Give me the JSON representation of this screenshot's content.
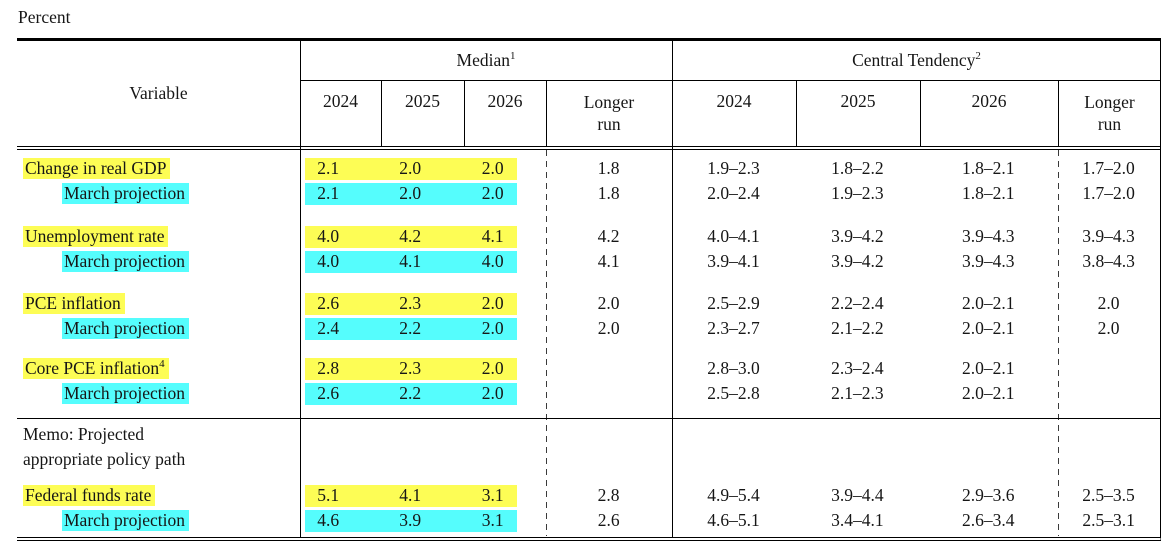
{
  "page": {
    "unit_label": "Percent"
  },
  "colors": {
    "highlight_yellow": "#fdfd55",
    "highlight_cyan": "#55fdfd",
    "rule": "#000000"
  },
  "table": {
    "header": {
      "variable": "Variable",
      "median_label": "Median",
      "median_sup": "1",
      "ct_label": "Central Tendency",
      "ct_sup": "2",
      "median_cols": [
        "2024",
        "2025",
        "2026",
        "Longer\nrun"
      ],
      "ct_cols": [
        "2024",
        "2025",
        "2026",
        "Longer\nrun"
      ]
    },
    "rows": [
      {
        "label": "Change in real GDP",
        "median": [
          "2.1",
          "2.0",
          "2.0"
        ],
        "longer": "1.8",
        "ct": [
          "1.9–2.3",
          "1.8–2.2",
          "1.8–2.1"
        ],
        "ct_longer": "1.7–2.0"
      },
      {
        "label": "March projection",
        "median": [
          "2.1",
          "2.0",
          "2.0"
        ],
        "longer": "1.8",
        "ct": [
          "2.0–2.4",
          "1.9–2.3",
          "1.8–2.1"
        ],
        "ct_longer": "1.7–2.0"
      },
      {
        "label": "Unemployment rate",
        "median": [
          "4.0",
          "4.2",
          "4.1"
        ],
        "longer": "4.2",
        "ct": [
          "4.0–4.1",
          "3.9–4.2",
          "3.9–4.3"
        ],
        "ct_longer": "3.9–4.3"
      },
      {
        "label": "March projection",
        "median": [
          "4.0",
          "4.1",
          "4.0"
        ],
        "longer": "4.1",
        "ct": [
          "3.9–4.1",
          "3.9–4.2",
          "3.9–4.3"
        ],
        "ct_longer": "3.8–4.3"
      },
      {
        "label": "PCE inflation",
        "median": [
          "2.6",
          "2.3",
          "2.0"
        ],
        "longer": "2.0",
        "ct": [
          "2.5–2.9",
          "2.2–2.4",
          "2.0–2.1"
        ],
        "ct_longer": "2.0"
      },
      {
        "label": "March projection",
        "median": [
          "2.4",
          "2.2",
          "2.0"
        ],
        "longer": "2.0",
        "ct": [
          "2.3–2.7",
          "2.1–2.2",
          "2.0–2.1"
        ],
        "ct_longer": "2.0"
      },
      {
        "label": "Core PCE inflation",
        "sup": "4",
        "median": [
          "2.8",
          "2.3",
          "2.0"
        ],
        "longer": "",
        "ct": [
          "2.8–3.0",
          "2.3–2.4",
          "2.0–2.1"
        ],
        "ct_longer": ""
      },
      {
        "label": "March projection",
        "median": [
          "2.6",
          "2.2",
          "2.0"
        ],
        "longer": "",
        "ct": [
          "2.5–2.8",
          "2.1–2.3",
          "2.0–2.1"
        ],
        "ct_longer": ""
      },
      {
        "label": "Federal funds rate",
        "median": [
          "5.1",
          "4.1",
          "3.1"
        ],
        "longer": "2.8",
        "ct": [
          "4.9–5.4",
          "3.9–4.4",
          "2.9–3.6"
        ],
        "ct_longer": "2.5–3.5"
      },
      {
        "label": "March projection",
        "median": [
          "4.6",
          "3.9",
          "3.1"
        ],
        "longer": "2.6",
        "ct": [
          "4.6–5.1",
          "3.4–4.1",
          "2.6–3.4"
        ],
        "ct_longer": "2.5–3.1"
      }
    ],
    "memo": {
      "label": "Memo: Projected\nappropriate policy path"
    }
  }
}
